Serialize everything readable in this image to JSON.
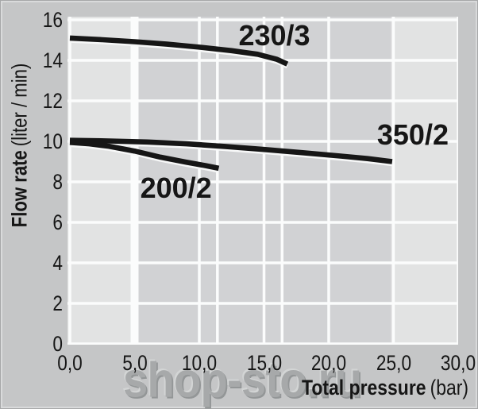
{
  "colors": {
    "page_bg": "#c5c6c7",
    "band_light": "#e2e3e3",
    "band_dark": "#d1d2d4",
    "gridline": "#fbfcfc",
    "curve": "#161616",
    "text": "#161616",
    "watermark": "#a7a9aa"
  },
  "watermark": {
    "text": "shop-sto.ru"
  },
  "chart_data": {
    "type": "line",
    "title": "",
    "xlabel": "Total pressure (bar)",
    "xlabel_bold": "Total pressure",
    "xlabel_unit": "(bar)",
    "ylabel": "Flow rate (liter / min)",
    "ylabel_bold": "Flow rate",
    "ylabel_unit": "(liter / min)",
    "xlim": [
      0,
      30
    ],
    "ylim": [
      0,
      16
    ],
    "grid": true,
    "legend": "inline-curve-labels",
    "x_ticks": [
      {
        "v": 0,
        "label": "0,0"
      },
      {
        "v": 5,
        "label": "5,0"
      },
      {
        "v": 10,
        "label": "10,0"
      },
      {
        "v": 15,
        "label": "15,0"
      },
      {
        "v": 20,
        "label": "20,0"
      },
      {
        "v": 25,
        "label": "25,0"
      },
      {
        "v": 30,
        "label": "30,0"
      }
    ],
    "y_ticks": [
      {
        "v": 0,
        "label": "0"
      },
      {
        "v": 2,
        "label": "2"
      },
      {
        "v": 4,
        "label": "4"
      },
      {
        "v": 6,
        "label": "6"
      },
      {
        "v": 8,
        "label": "8"
      },
      {
        "v": 10,
        "label": "10"
      },
      {
        "v": 12,
        "label": "12"
      },
      {
        "v": 14,
        "label": "14"
      },
      {
        "v": 16,
        "label": "16"
      }
    ],
    "light_bands": [
      [
        0,
        5
      ],
      [
        25,
        30
      ]
    ],
    "series": [
      {
        "name": "230/3",
        "label_x": 15.8,
        "label_y": 15.2,
        "end_line_x": 16.4,
        "points": [
          [
            0,
            15.1
          ],
          [
            2.5,
            15.02
          ],
          [
            5,
            14.92
          ],
          [
            7.5,
            14.8
          ],
          [
            10,
            14.65
          ],
          [
            12.5,
            14.48
          ],
          [
            14.5,
            14.3
          ],
          [
            16,
            14.05
          ],
          [
            16.8,
            13.82
          ]
        ]
      },
      {
        "name": "350/2",
        "label_x": 26.5,
        "label_y": 10.3,
        "points": [
          [
            0,
            10.05
          ],
          [
            3,
            10.02
          ],
          [
            6,
            9.97
          ],
          [
            9,
            9.88
          ],
          [
            12,
            9.75
          ],
          [
            15,
            9.6
          ],
          [
            18,
            9.44
          ],
          [
            21,
            9.27
          ],
          [
            23,
            9.15
          ],
          [
            24.9,
            9.0
          ]
        ]
      },
      {
        "name": "200/2",
        "label_x": 8.2,
        "label_y": 7.7,
        "end_line_x": 11.4,
        "points": [
          [
            0,
            9.95
          ],
          [
            1.5,
            9.88
          ],
          [
            3,
            9.76
          ],
          [
            5,
            9.52
          ],
          [
            7,
            9.22
          ],
          [
            9,
            8.97
          ],
          [
            10.5,
            8.8
          ],
          [
            11.5,
            8.67
          ]
        ]
      }
    ]
  }
}
